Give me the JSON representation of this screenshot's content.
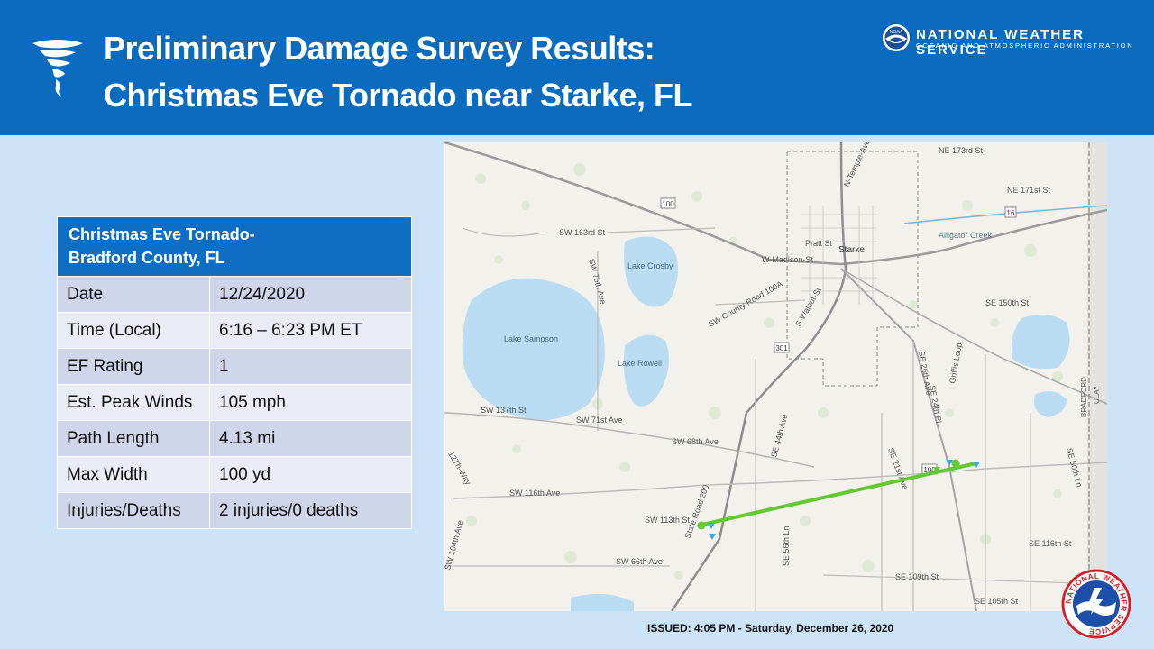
{
  "header": {
    "title_line1": "Preliminary Damage Survey Results:",
    "title_line2": "Christmas Eve Tornado near Starke, FL",
    "agency_name": "NATIONAL WEATHER SERVICE",
    "agency_sub": "OCEANIC AND ATMOSPHERIC ADMINISTRATION",
    "logo_text": "NOAA"
  },
  "table": {
    "heading_line1": "Christmas Eve Tornado-",
    "heading_line2": "Bradford County, FL",
    "rows": [
      {
        "label": "Date",
        "value": "12/24/2020"
      },
      {
        "label": "Time (Local)",
        "value": "6:16 – 6:23 PM ET"
      },
      {
        "label": "EF Rating",
        "value": "1"
      },
      {
        "label": "Est. Peak Winds",
        "value": "105 mph"
      },
      {
        "label": "Path Length",
        "value": "4.13 mi"
      },
      {
        "label": "Max Width",
        "value": "100 yd"
      },
      {
        "label": "Injuries/Deaths",
        "value": "2 injuries/0 deaths"
      }
    ]
  },
  "map": {
    "labels": {
      "starke": "Starke",
      "lake_sampson": "Lake Sampson",
      "lake_crosby": "Lake Crosby",
      "lake_rowell": "Lake Rowell",
      "alligator_creek": "Alligator Creek",
      "madison": "W-Madison-St",
      "pratt": "Pratt St",
      "temple": "N-Temple-Ave",
      "walnut": "S-Walnut-St",
      "ne173": "NE 173rd St",
      "ne171": "NE 171st St",
      "se150": "SE 150th St",
      "sw163": "SW 163rd St",
      "sw137": "SW 137th St",
      "sw71": "SW 71st Ave",
      "sw68": "SW 68th Ave",
      "sw116": "SW 116th Ave",
      "sw113": "SW 113th St",
      "sw66": "SW 66th Ave",
      "sw104": "SW 104th Ave",
      "sw75": "SW 75th Ave",
      "se44": "SE 44th Ave",
      "se21": "SE 21st Ave",
      "se24pl": "SE 24th Pl",
      "se26": "SE 26th Ave",
      "griffis": "Griffis Loop",
      "se116": "SE 116th St",
      "se109": "SE 109th St",
      "se105": "SE 105th St",
      "se56": "SE 56th Ln",
      "se50": "SE 50th Ln",
      "cr100a": "SW County Road 100A",
      "sr200": "State Road 200",
      "twelve": "12Th-Way",
      "bradford": "BRADFORD",
      "clay": "CLAY",
      "shield100a": "100",
      "shield100b": "100",
      "shield16": "16",
      "shield301": "301"
    },
    "colors": {
      "water": "#b9dcf2",
      "track": "#63c933",
      "marker": "#3aa7e0"
    }
  },
  "footer": {
    "issued": "ISSUED:  4:05 PM - Saturday, December 26, 2020"
  },
  "badge": {
    "text": "NATIONAL WEATHER SERVICE"
  }
}
